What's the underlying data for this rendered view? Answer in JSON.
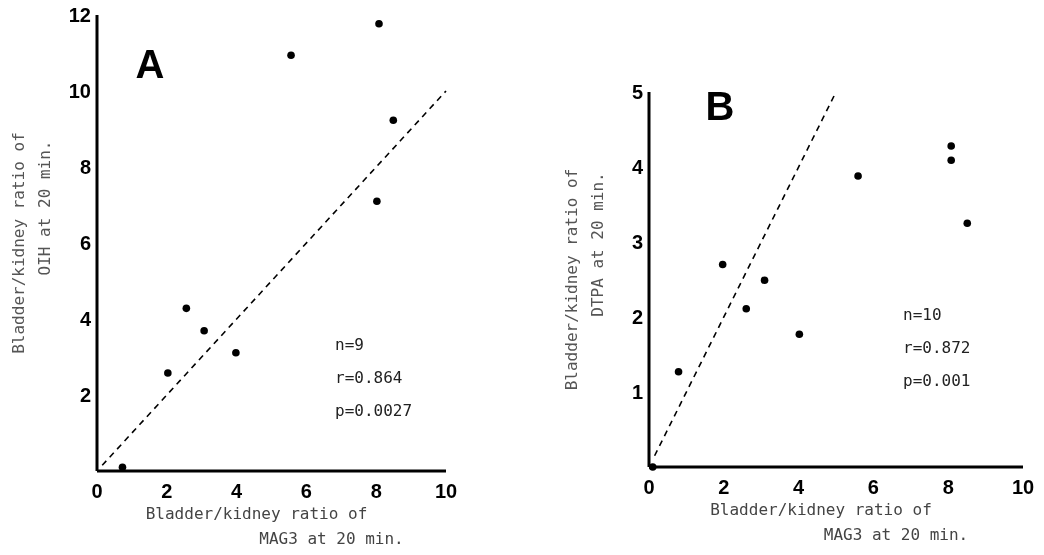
{
  "chart_data": [
    {
      "type": "scatter",
      "xlabel": "Bladder/kidney ratio of\nMAG3 at 20 min.",
      "ylabel": "Bladder/kidney ratio of\nOIH at 20 min.",
      "xlim": [
        0,
        10
      ],
      "ylim": [
        0,
        12
      ],
      "xticks": [
        0,
        2,
        4,
        6,
        8,
        10
      ],
      "yticks": [
        2,
        4,
        6,
        8,
        10,
        12
      ],
      "marker": "circle",
      "annotations": [
        "A",
        "n=9",
        "r=0.864",
        "p=0.0027"
      ],
      "series": [
        {
          "type": "scatter",
          "color": "#000000",
          "x": [
            0.73,
            2.03,
            2.56,
            3.07,
            3.98,
            5.56,
            8.02,
            8.08,
            8.49
          ],
          "values": [
            0.1,
            2.58,
            4.28,
            3.69,
            3.11,
            10.94,
            7.1,
            11.77,
            9.23
          ]
        },
        {
          "type": "line",
          "color": "#000000",
          "line_style": "dashed",
          "marker": "none",
          "x": [
            0.15,
            10
          ],
          "values": [
            0.15,
            10
          ]
        }
      ]
    },
    {
      "type": "scatter",
      "xlabel": "Bladder/kidney ratio of\nMAG3 at 20 min.",
      "ylabel": "Bladder/kidney ratio of\nDTPA at 20 min.",
      "xlim": [
        0,
        10
      ],
      "ylim": [
        0,
        5
      ],
      "xticks": [
        0,
        2,
        4,
        6,
        8,
        10
      ],
      "yticks": [
        1,
        2,
        3,
        4,
        5
      ],
      "marker": "circle",
      "annotations": [
        "B",
        "n=10",
        "r=0.872",
        "p=0.001"
      ],
      "series": [
        {
          "type": "scatter",
          "color": "#000000",
          "x": [
            0.1,
            0.79,
            1.97,
            2.6,
            3.09,
            4.02,
            5.59,
            8.08,
            8.08,
            8.51
          ],
          "values": [
            0,
            1.27,
            2.7,
            2.11,
            2.49,
            1.77,
            3.88,
            4.28,
            4.09,
            3.25
          ]
        },
        {
          "type": "line",
          "color": "#000000",
          "line_style": "dashed",
          "marker": "none",
          "x": [
            0.15,
            5
          ],
          "values": [
            0.15,
            5
          ]
        }
      ]
    }
  ]
}
